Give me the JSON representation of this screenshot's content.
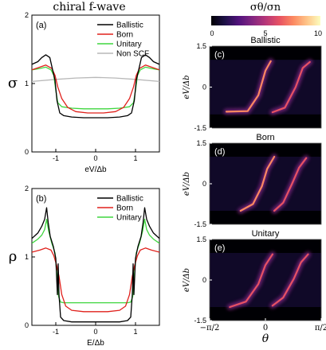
{
  "figure": {
    "left_title": "chiral f-wave",
    "colorbar_label": "σθ/σn",
    "colorbar_ticks": [
      "0",
      "5",
      "10"
    ],
    "colorbar_colors": [
      "#000004",
      "#1d1147",
      "#51127c",
      "#822681",
      "#b73779",
      "#e75263",
      "#fc8961",
      "#fec488",
      "#fcfdbf"
    ]
  },
  "chart_data": [
    {
      "type": "line",
      "panel": "(a)",
      "ylabel": "σ",
      "xlabel": "eV/Δb",
      "xlim": [
        -1.6,
        1.6
      ],
      "ylim": [
        0,
        2
      ],
      "xticks": [
        -1,
        0,
        1
      ],
      "yticks": [
        0,
        1,
        2
      ],
      "legend_position": "top-right",
      "series": [
        {
          "name": "Ballistic",
          "color": "#000000",
          "x": [
            -1.6,
            -1.45,
            -1.35,
            -1.25,
            -1.15,
            -1.08,
            -1.02,
            -0.97,
            -0.9,
            -0.8,
            -0.6,
            -0.3,
            0,
            0.3,
            0.6,
            0.8,
            0.9,
            0.97,
            1.02,
            1.08,
            1.15,
            1.25,
            1.35,
            1.45,
            1.6
          ],
          "y": [
            1.28,
            1.32,
            1.38,
            1.42,
            1.38,
            1.2,
            1.05,
            0.75,
            0.57,
            0.53,
            0.51,
            0.5,
            0.5,
            0.5,
            0.51,
            0.53,
            0.57,
            0.75,
            1.05,
            1.2,
            1.38,
            1.42,
            1.38,
            1.32,
            1.28
          ]
        },
        {
          "name": "Born",
          "color": "#e0201b",
          "x": [
            -1.6,
            -1.4,
            -1.25,
            -1.1,
            -1.02,
            -0.95,
            -0.85,
            -0.7,
            -0.5,
            -0.2,
            0,
            0.2,
            0.5,
            0.7,
            0.85,
            0.95,
            1.02,
            1.1,
            1.25,
            1.4,
            1.6
          ],
          "y": [
            1.2,
            1.24,
            1.27,
            1.22,
            1.12,
            0.95,
            0.78,
            0.65,
            0.59,
            0.57,
            0.57,
            0.57,
            0.59,
            0.65,
            0.78,
            0.95,
            1.12,
            1.22,
            1.27,
            1.24,
            1.2
          ]
        },
        {
          "name": "Unitary",
          "color": "#3ed63e",
          "x": [
            -1.6,
            -1.4,
            -1.25,
            -1.12,
            -1.05,
            -1.0,
            -0.95,
            -0.85,
            -0.6,
            -0.3,
            0,
            0.3,
            0.6,
            0.85,
            0.95,
            1.0,
            1.05,
            1.12,
            1.25,
            1.4,
            1.6
          ],
          "y": [
            1.2,
            1.22,
            1.24,
            1.2,
            1.12,
            0.9,
            0.72,
            0.66,
            0.64,
            0.63,
            0.63,
            0.63,
            0.64,
            0.66,
            0.72,
            0.9,
            1.12,
            1.2,
            1.24,
            1.22,
            1.2
          ]
        },
        {
          "name": "Non SCF",
          "color": "#b8b8b8",
          "x": [
            -1.6,
            -1.0,
            -0.5,
            0,
            0.5,
            1.0,
            1.6
          ],
          "y": [
            1.03,
            1.06,
            1.08,
            1.09,
            1.08,
            1.06,
            1.03
          ]
        }
      ]
    },
    {
      "type": "line",
      "panel": "(b)",
      "ylabel": "ρ",
      "xlabel": "E/Δb",
      "xlim": [
        -1.6,
        1.6
      ],
      "ylim": [
        0,
        2
      ],
      "xticks": [
        -1,
        0,
        1
      ],
      "yticks": [
        0,
        1,
        2
      ],
      "legend_position": "top-right",
      "series": [
        {
          "name": "Ballistic",
          "color": "#000000",
          "x": [
            -1.6,
            -1.45,
            -1.35,
            -1.28,
            -1.23,
            -1.19,
            -1.14,
            -1.06,
            -1.0,
            -0.96,
            -0.94,
            -0.92,
            -0.88,
            -0.8,
            -0.6,
            -0.3,
            0,
            0.3,
            0.6,
            0.8,
            0.88,
            0.92,
            0.94,
            0.96,
            1.0,
            1.06,
            1.14,
            1.19,
            1.23,
            1.28,
            1.35,
            1.45,
            1.6
          ],
          "y": [
            1.27,
            1.35,
            1.45,
            1.55,
            1.72,
            1.5,
            1.3,
            1.15,
            0.98,
            0.45,
            0.9,
            0.45,
            0.12,
            0.07,
            0.05,
            0.05,
            0.05,
            0.05,
            0.05,
            0.07,
            0.12,
            0.45,
            0.9,
            0.45,
            0.98,
            1.15,
            1.3,
            1.5,
            1.72,
            1.55,
            1.45,
            1.35,
            1.27
          ]
        },
        {
          "name": "Born",
          "color": "#e0201b",
          "x": [
            -1.6,
            -1.4,
            -1.25,
            -1.12,
            -1.05,
            -0.98,
            -0.92,
            -0.85,
            -0.75,
            -0.6,
            -0.3,
            0,
            0.3,
            0.6,
            0.75,
            0.85,
            0.92,
            0.98,
            1.05,
            1.12,
            1.25,
            1.4,
            1.6
          ],
          "y": [
            1.07,
            1.1,
            1.13,
            1.1,
            1.02,
            0.88,
            0.72,
            0.45,
            0.28,
            0.22,
            0.2,
            0.2,
            0.2,
            0.22,
            0.28,
            0.45,
            0.72,
            0.88,
            1.02,
            1.1,
            1.13,
            1.1,
            1.07
          ]
        },
        {
          "name": "Unitary",
          "color": "#3ed63e",
          "x": [
            -1.6,
            -1.45,
            -1.35,
            -1.28,
            -1.23,
            -1.18,
            -1.1,
            -1.02,
            -0.98,
            -0.93,
            -0.88,
            -0.8,
            -0.6,
            -0.3,
            0,
            0.3,
            0.6,
            0.8,
            0.88,
            0.93,
            0.98,
            1.02,
            1.1,
            1.18,
            1.23,
            1.28,
            1.35,
            1.45,
            1.6
          ],
          "y": [
            1.2,
            1.26,
            1.32,
            1.4,
            1.55,
            1.38,
            1.2,
            1.06,
            0.8,
            0.42,
            0.34,
            0.33,
            0.33,
            0.33,
            0.33,
            0.33,
            0.33,
            0.33,
            0.34,
            0.42,
            0.8,
            1.06,
            1.2,
            1.38,
            1.55,
            1.4,
            1.32,
            1.26,
            1.2
          ]
        }
      ]
    },
    {
      "type": "heatmap",
      "panel": "(c)",
      "title": "Ballistic",
      "ylabel": "eV/Δb",
      "xlim": [
        "−π/2",
        "π/2"
      ],
      "ylim": [
        -1.5,
        1.5
      ],
      "yticks": [
        -1.5,
        0,
        1.5
      ],
      "zlim": [
        0,
        10
      ],
      "features": [
        {
          "x": [
            -1.1,
            -0.5,
            -0.2,
            0.0,
            0.15
          ],
          "y": [
            -0.9,
            -0.88,
            -0.3,
            0.6,
            0.95
          ],
          "peak": 10
        },
        {
          "x": [
            0.2,
            0.55,
            0.85,
            1.05,
            1.25
          ],
          "y": [
            -0.92,
            -0.75,
            0.0,
            0.7,
            0.92
          ],
          "peak": 8
        }
      ]
    },
    {
      "type": "heatmap",
      "panel": "(d)",
      "title": "Born",
      "ylabel": "eV/Δb",
      "xlim": [
        "−π/2",
        "π/2"
      ],
      "ylim": [
        -1.5,
        1.5
      ],
      "yticks": [
        -1.5,
        0,
        1.5
      ],
      "zlim": [
        0,
        10
      ],
      "features": [
        {
          "x": [
            -0.7,
            -0.35,
            -0.1,
            0.05,
            0.25
          ],
          "y": [
            -1.0,
            -0.75,
            -0.1,
            0.55,
            1.0
          ],
          "peak": 10
        },
        {
          "x": [
            0.25,
            0.5,
            0.75,
            0.95,
            1.15
          ],
          "y": [
            -1.0,
            -0.7,
            0.0,
            0.6,
            0.95
          ],
          "peak": 7
        }
      ]
    },
    {
      "type": "heatmap",
      "panel": "(e)",
      "title": "Unitary",
      "xlabel": "θ",
      "ylabel": "eV/Δb",
      "xlim": [
        "−π/2",
        "π/2"
      ],
      "xticks": [
        "−π/2",
        "0",
        "π/2"
      ],
      "ylim": [
        -1.5,
        1.5
      ],
      "yticks": [
        -1.5,
        0,
        1.5
      ],
      "zlim": [
        0,
        10
      ],
      "features": [
        {
          "x": [
            -1.0,
            -0.55,
            -0.2,
            0.0,
            0.2
          ],
          "y": [
            -1.0,
            -0.8,
            -0.15,
            0.55,
            0.95
          ],
          "peak": 9
        },
        {
          "x": [
            0.2,
            0.5,
            0.8,
            1.0,
            1.2
          ],
          "y": [
            -0.95,
            -0.65,
            0.05,
            0.65,
            0.95
          ],
          "peak": 7
        }
      ]
    }
  ]
}
